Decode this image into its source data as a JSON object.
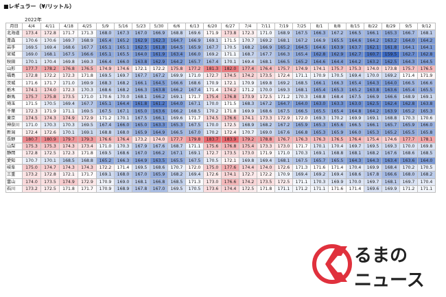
{
  "title": "■レギュラー（¥/リットル）",
  "year_label": "2022年",
  "corner_label": "月日",
  "dates": [
    "4/4",
    "4/11",
    "4/18",
    "4/25",
    "5/9",
    "5/16",
    "5/23",
    "5/30",
    "6/6",
    "6/13",
    "6/20",
    "6/27",
    "7/4",
    "7/11",
    "7/19",
    "7/25",
    "8/1",
    "8/8",
    "8/15",
    "8/22",
    "8/29",
    "9/5",
    "9/12"
  ],
  "rows": [
    {
      "pref": "北海道",
      "values": [
        "173.4",
        "172.8",
        "171.7",
        "171.3",
        "168.0",
        "167.3",
        "167.0",
        "166.9",
        "168.8",
        "169.6",
        "171.9",
        "173.8",
        "172.3",
        "171.0",
        "168.9",
        "167.5",
        "166.3",
        "167.2",
        "166.5",
        "166.1",
        "165.3",
        "166.7",
        "168.1"
      ]
    },
    {
      "pref": "青森",
      "values": [
        "170.6",
        "170.6",
        "169.7",
        "168.9",
        "165.4",
        "165.2",
        "162.9",
        "162.3",
        "164.7",
        "166.9",
        "169.1",
        "171.5",
        "170.7",
        "169.2",
        "168.1",
        "167.2",
        "166.9",
        "165.5",
        "164.6",
        "164.2",
        "163.2",
        "164.0",
        "164.2"
      ]
    },
    {
      "pref": "岩手",
      "values": [
        "169.5",
        "169.4",
        "168.6",
        "167.7",
        "165.1",
        "165.1",
        "162.5",
        "161.8",
        "164.5",
        "165.9",
        "167.7",
        "170.5",
        "168.2",
        "166.9",
        "165.2",
        "164.5",
        "164.6",
        "163.9",
        "163.7",
        "162.1",
        "161.8",
        "164.1",
        "164.1"
      ]
    },
    {
      "pref": "宮城",
      "values": [
        "169.0",
        "168.1",
        "167.5",
        "166.6",
        "165.1",
        "165.5",
        "164.0",
        "161.9",
        "163.4",
        "166.0",
        "169.2",
        "171.1",
        "168.7",
        "167.7",
        "166.3",
        "165.4",
        "162.8",
        "162.9",
        "162.7",
        "160.7",
        "159.5",
        "162.7",
        "162.8"
      ]
    },
    {
      "pref": "秋田",
      "values": [
        "170.1",
        "170.4",
        "169.8",
        "169.3",
        "166.4",
        "166.0",
        "163.8",
        "162.9",
        "164.2",
        "165.7",
        "167.4",
        "170.1",
        "169.4",
        "168.1",
        "166.5",
        "165.2",
        "164.6",
        "164.4",
        "164.2",
        "163.2",
        "162.5",
        "164.3",
        "164.5"
      ]
    },
    {
      "pref": "山形",
      "values": [
        "177.7",
        "178.2",
        "176.8",
        "176.5",
        "174.9",
        "174.6",
        "172.1",
        "172.2",
        "175.8",
        "177.2",
        "181.3",
        "182.0",
        "177.4",
        "176.4",
        "175.7",
        "174.9",
        "174.1",
        "175.7",
        "175.3",
        "174.0",
        "173.8",
        "175.7",
        "176.5"
      ]
    },
    {
      "pref": "福島",
      "values": [
        "172.8",
        "172.2",
        "172.3",
        "171.8",
        "169.5",
        "169.7",
        "167.7",
        "167.2",
        "169.9",
        "171.0",
        "172.7",
        "174.5",
        "174.2",
        "173.5",
        "172.4",
        "171.1",
        "170.9",
        "170.5",
        "169.4",
        "170.0",
        "169.2",
        "171.4",
        "171.9"
      ]
    },
    {
      "pref": "茨城",
      "values": [
        "171.6",
        "171.7",
        "171.0",
        "169.9",
        "168.3",
        "168.2",
        "166.1",
        "164.5",
        "166.6",
        "168.6",
        "170.9",
        "172.1",
        "170.9",
        "169.8",
        "169.2",
        "168.5",
        "166.1",
        "166.3",
        "165.4",
        "164.3",
        "164.0",
        "166.5",
        "166.6"
      ]
    },
    {
      "pref": "栃木",
      "values": [
        "174.1",
        "174.0",
        "172.3",
        "170.3",
        "168.6",
        "168.2",
        "166.3",
        "163.8",
        "166.2",
        "167.4",
        "171.4",
        "174.2",
        "171.2",
        "170.0",
        "169.3",
        "168.1",
        "165.4",
        "165.3",
        "165.2",
        "163.8",
        "163.6",
        "165.4",
        "165.5"
      ]
    },
    {
      "pref": "群馬",
      "values": [
        "175.7",
        "175.8",
        "173.5",
        "171.0",
        "170.6",
        "170.0",
        "168.1",
        "166.2",
        "169.1",
        "171.7",
        "175.4",
        "176.8",
        "173.9",
        "172.5",
        "171.2",
        "170.3",
        "168.8",
        "168.4",
        "167.5",
        "166.9",
        "166.6",
        "168.9",
        "169.1"
      ]
    },
    {
      "pref": "埼玉",
      "values": [
        "171.5",
        "170.5",
        "169.4",
        "167.7",
        "165.1",
        "164.4",
        "161.8",
        "161.2",
        "164.0",
        "167.1",
        "170.0",
        "171.5",
        "168.3",
        "167.2",
        "164.7",
        "164.0",
        "163.0",
        "163.3",
        "163.0",
        "162.5",
        "162.4",
        "162.8",
        "163.8"
      ]
    },
    {
      "pref": "千葉",
      "values": [
        "172.3",
        "171.9",
        "171.1",
        "169.5",
        "167.5",
        "167.1",
        "165.0",
        "163.6",
        "166.2",
        "168.5",
        "170.2",
        "171.8",
        "169.9",
        "168.6",
        "167.5",
        "166.5",
        "165.5",
        "165.4",
        "164.8",
        "164.2",
        "163.9",
        "165.2",
        "165.3"
      ]
    },
    {
      "pref": "東京",
      "values": [
        "174.5",
        "174.3",
        "174.9",
        "172.9",
        "171.2",
        "170.1",
        "167.5",
        "166.1",
        "169.6",
        "171.7",
        "174.5",
        "176.6",
        "174.1",
        "173.3",
        "172.9",
        "172.0",
        "169.3",
        "170.2",
        "169.9",
        "169.1",
        "168.8",
        "170.3",
        "170.6"
      ]
    },
    {
      "pref": "神奈川",
      "values": [
        "171.0",
        "170.3",
        "170.3",
        "169.5",
        "167.4",
        "166.0",
        "165.0",
        "163.3",
        "165.3",
        "167.5",
        "170.0",
        "172.5",
        "168.9",
        "168.2",
        "167.2",
        "165.9",
        "165.3",
        "165.6",
        "166.5",
        "166.1",
        "165.7",
        "165.9",
        "166.0"
      ]
    },
    {
      "pref": "新潟",
      "values": [
        "172.4",
        "172.6",
        "170.1",
        "169.1",
        "168.8",
        "168.0",
        "165.9",
        "164.9",
        "166.5",
        "167.0",
        "170.2",
        "172.4",
        "170.7",
        "169.0",
        "167.6",
        "166.8",
        "165.3",
        "165.9",
        "166.0",
        "165.3",
        "165.2",
        "165.5",
        "165.8"
      ]
    },
    {
      "pref": "長野",
      "values": [
        "180.7",
        "180.9",
        "179.7",
        "179.3",
        "176.6",
        "176.4",
        "173.2",
        "174.0",
        "177.7",
        "179.8",
        "183.7",
        "183.9",
        "179.2",
        "178.8",
        "176.7",
        "176.3",
        "176.3",
        "176.5",
        "176.4",
        "175.4",
        "174.6",
        "177.7",
        "178.1"
      ]
    },
    {
      "pref": "山梨",
      "values": [
        "175.3",
        "175.3",
        "174.3",
        "173.4",
        "171.0",
        "170.3",
        "167.9",
        "167.6",
        "168.7",
        "171.1",
        "175.6",
        "176.8",
        "175.4",
        "173.3",
        "173.0",
        "171.7",
        "170.1",
        "170.4",
        "169.7",
        "169.5",
        "169.3",
        "170.0",
        "169.8"
      ]
    },
    {
      "pref": "静岡",
      "values": [
        "172.8",
        "172.5",
        "172.3",
        "171.8",
        "169.5",
        "168.6",
        "167.0",
        "166.2",
        "167.1",
        "169.1",
        "172.7",
        "173.5",
        "173.0",
        "171.9",
        "171.0",
        "170.3",
        "169.1",
        "168.8",
        "168.1",
        "168.2",
        "167.6",
        "168.6",
        "168.5"
      ]
    },
    {
      "pref": "愛知",
      "values": [
        "170.7",
        "170.1",
        "168.5",
        "168.8",
        "165.2",
        "166.3",
        "164.9",
        "163.5",
        "165.5",
        "167.5",
        "170.5",
        "172.1",
        "169.8",
        "169.4",
        "168.1",
        "167.5",
        "165.7",
        "165.5",
        "164.3",
        "164.3",
        "163.4",
        "163.6",
        "164.0"
      ]
    },
    {
      "pref": "岐阜",
      "values": [
        "175.0",
        "174.7",
        "174.3",
        "174.3",
        "172.2",
        "171.4",
        "169.5",
        "168.6",
        "170.7",
        "172.0",
        "175.0",
        "177.6",
        "174.4",
        "174.0",
        "172.6",
        "171.3",
        "171.6",
        "171.4",
        "170.4",
        "169.9",
        "168.4",
        "170.2",
        "170.5"
      ]
    },
    {
      "pref": "三重",
      "values": [
        "173.2",
        "172.8",
        "172.1",
        "171.7",
        "169.1",
        "168.0",
        "167.0",
        "165.9",
        "168.2",
        "169.4",
        "172.6",
        "174.1",
        "172.7",
        "172.2",
        "170.9",
        "169.4",
        "169.2",
        "169.4",
        "168.6",
        "167.8",
        "166.6",
        "168.0",
        "168.2"
      ]
    },
    {
      "pref": "富山",
      "values": [
        "174.0",
        "173.5",
        "174.9",
        "172.9",
        "170.9",
        "169.0",
        "168.1",
        "166.8",
        "168.5",
        "171.3",
        "173.0",
        "176.6",
        "174.2",
        "173.5",
        "172.5",
        "171.1",
        "170.3",
        "169.9",
        "170.0",
        "169.7",
        "168.1",
        "169.7",
        "170.4"
      ]
    },
    {
      "pref": "石川",
      "values": [
        "173.2",
        "172.5",
        "171.8",
        "171.7",
        "170.9",
        "168.9",
        "167.8",
        "167.0",
        "169.5",
        "170.5",
        "173.6",
        "174.4",
        "172.5",
        "171.8",
        "171.1",
        "171.2",
        "171.1",
        "171.6",
        "171.4",
        "169.6",
        "169.9",
        "171.2",
        "171.1"
      ]
    }
  ],
  "logo": {
    "line1": "るまの",
    "line2": "ニュース",
    "brand_color": "#e0313d"
  },
  "colors": {
    "high": "#e8676d",
    "low": "#3a68c2",
    "mid": "#ffffff"
  }
}
